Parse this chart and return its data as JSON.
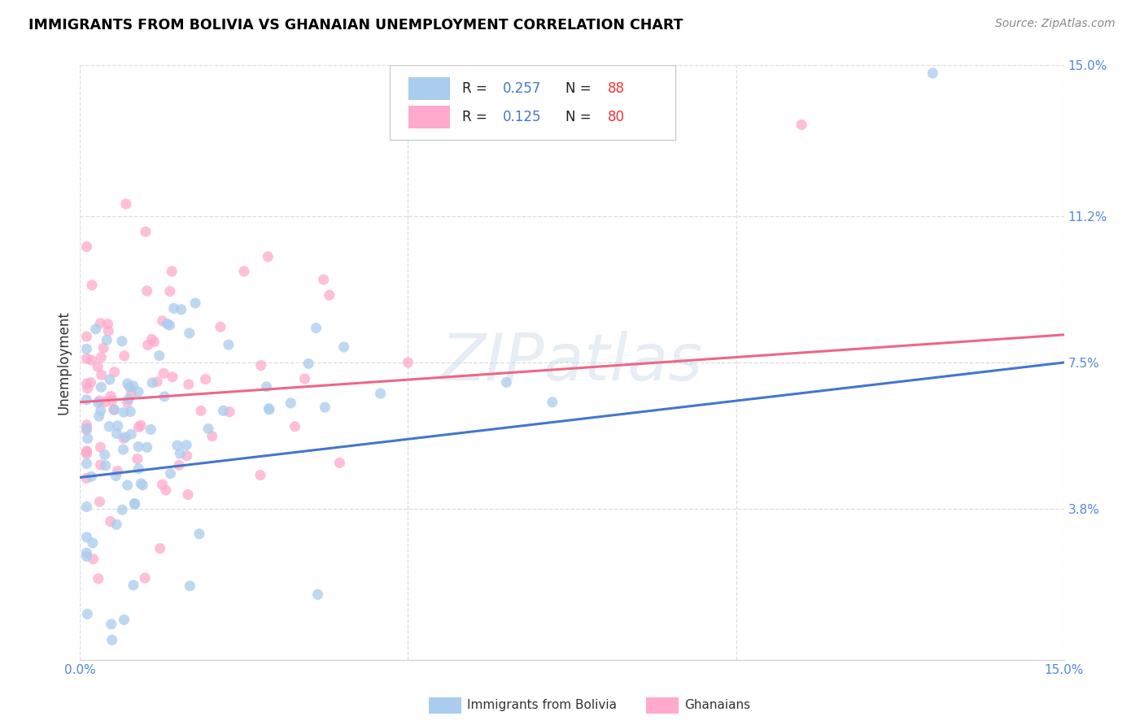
{
  "title": "IMMIGRANTS FROM BOLIVIA VS GHANAIAN UNEMPLOYMENT CORRELATION CHART",
  "source": "Source: ZipAtlas.com",
  "ylabel": "Unemployment",
  "x_min": 0.0,
  "x_max": 0.15,
  "y_min": 0.0,
  "y_max": 0.15,
  "y_tick_labels_right": [
    "15.0%",
    "11.2%",
    "7.5%",
    "3.8%"
  ],
  "y_tick_vals_right": [
    0.15,
    0.112,
    0.075,
    0.038
  ],
  "legend_R1": "0.257",
  "legend_N1": "88",
  "legend_R2": "0.125",
  "legend_N2": "80",
  "color_bolivia": "#aaccee",
  "color_ghana": "#ffaacc",
  "color_line_bolivia": "#4477cc",
  "color_line_ghana": "#ee6688",
  "background_color": "#ffffff",
  "grid_color": "#dddddd"
}
